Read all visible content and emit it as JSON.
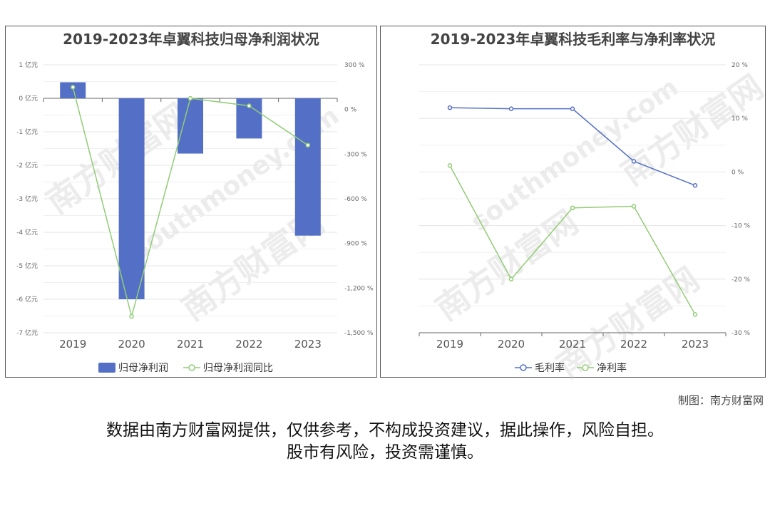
{
  "watermark": {
    "text": "南方财富网",
    "text_en": "southmoney.com"
  },
  "credit": "制图：南方财富网",
  "disclaimer": {
    "line1": "数据由南方财富网提供，仅供参考，不构成投资建议，据此操作，风险自担。",
    "line2": "股市有风险，投资需谨慎。"
  },
  "chart_data": [
    {
      "type": "bar",
      "title": "2019-2023年卓翼科技归母净利润状况",
      "categories": [
        "2019",
        "2020",
        "2021",
        "2022",
        "2023"
      ],
      "series": [
        {
          "name": "归母净利润",
          "type": "bar",
          "axis": "left",
          "color": "#5470c6",
          "values": [
            0.48,
            -6.0,
            -1.65,
            -1.2,
            -4.1
          ]
        },
        {
          "name": "归母净利润同比",
          "type": "line",
          "axis": "right",
          "color": "#91cc75",
          "values": [
            150,
            -1390,
            75,
            25,
            -240
          ]
        }
      ],
      "y_left": {
        "ylim": [
          -7,
          1
        ],
        "ticks": [
          1,
          0,
          -1,
          -2,
          -3,
          -4,
          -5,
          -6,
          -7
        ],
        "tick_labels": [
          "1 亿元",
          "0 亿元",
          "-1 亿元",
          "-2 亿元",
          "-3 亿元",
          "-4 亿元",
          "-5 亿元",
          "-6 亿元",
          "-7 亿元"
        ]
      },
      "y_right": {
        "ylim": [
          -1500,
          300
        ],
        "ticks": [
          300,
          0,
          -300,
          -600,
          -900,
          -1200,
          -1500
        ],
        "tick_labels": [
          "300 %",
          "0 %",
          "-300 %",
          "-600 %",
          "-900 %",
          "-1,200 %",
          "-1,500 %"
        ]
      },
      "legend": "bottom-center",
      "grid": true
    },
    {
      "type": "line",
      "title": "2019-2023年卓翼科技毛利率与净利率状况",
      "categories": [
        "2019",
        "2020",
        "2021",
        "2022",
        "2023"
      ],
      "series": [
        {
          "name": "毛利率",
          "color": "#5470c6",
          "values": [
            12.0,
            11.8,
            11.8,
            2.0,
            -2.5
          ]
        },
        {
          "name": "净利率",
          "color": "#91cc75",
          "values": [
            1.2,
            -20.0,
            -6.7,
            -6.4,
            -26.6
          ]
        }
      ],
      "y_right": {
        "ylim": [
          -30,
          20
        ],
        "ticks": [
          20,
          10,
          0,
          -10,
          -20,
          -30
        ],
        "tick_labels": [
          "20 %",
          "10 %",
          "0 %",
          "-10 %",
          "-20 %",
          "-30 %"
        ]
      },
      "legend": "bottom-center",
      "grid": true
    }
  ]
}
